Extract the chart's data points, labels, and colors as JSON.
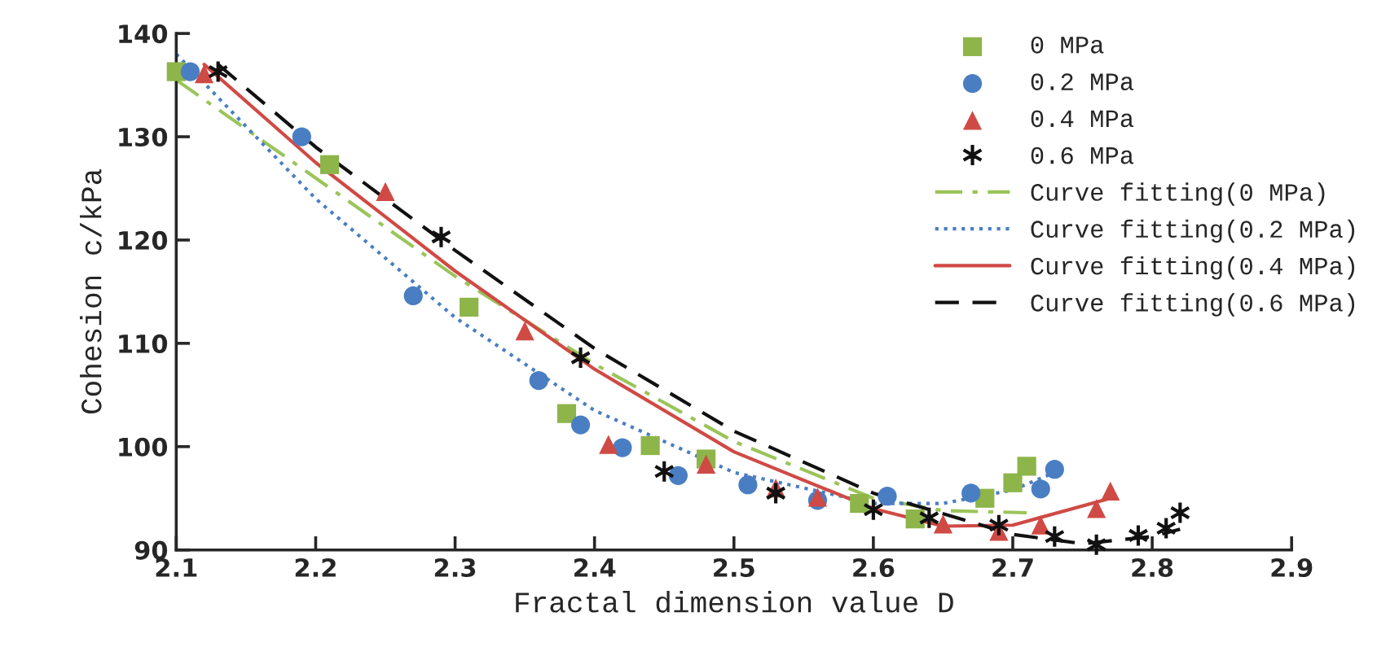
{
  "chart_data": {
    "type": "scatter",
    "xlabel": "Fractal dimension value D",
    "ylabel": "Cohesion c/kPa",
    "xlim": [
      2.1,
      2.9
    ],
    "xticks": [
      {
        "value": 2.1,
        "label": "2.1"
      },
      {
        "value": 2.2,
        "label": "2.2"
      },
      {
        "value": 2.3,
        "label": "2.3"
      },
      {
        "value": 2.4,
        "label": "2.4"
      },
      {
        "value": 2.5,
        "label": "2.5"
      },
      {
        "value": 2.6,
        "label": "2.6"
      },
      {
        "value": 2.7,
        "label": "2.7"
      },
      {
        "value": 2.8,
        "label": "2.8"
      },
      {
        "value": 2.9,
        "label": "2.9"
      }
    ],
    "ylim": [
      90,
      140
    ],
    "yticks": [
      90,
      100,
      110,
      120,
      130,
      140
    ],
    "grid": false,
    "legend": "top right",
    "series": [
      {
        "name": "0 MPa",
        "marker": "square",
        "color": "#8db54a",
        "x": [
          2.1,
          2.21,
          2.31,
          2.38,
          2.44,
          2.48,
          2.59,
          2.63,
          2.68,
          2.7,
          2.71
        ],
        "values": [
          136.3,
          127.3,
          113.5,
          103.2,
          100.1,
          98.8,
          94.5,
          93.0,
          95.0,
          96.5,
          98.1
        ]
      },
      {
        "name": "0.2 MPa",
        "marker": "circle",
        "color": "#4a7ec3",
        "x": [
          2.11,
          2.19,
          2.27,
          2.36,
          2.39,
          2.42,
          2.46,
          2.51,
          2.56,
          2.61,
          2.67,
          2.72,
          2.73
        ],
        "values": [
          136.3,
          130.0,
          114.6,
          106.4,
          102.1,
          99.9,
          97.2,
          96.3,
          94.8,
          95.2,
          95.5,
          95.9,
          97.8
        ]
      },
      {
        "name": "0.4 MPa",
        "marker": "triangle",
        "color": "#d04a45",
        "x": [
          2.12,
          2.25,
          2.35,
          2.41,
          2.48,
          2.53,
          2.56,
          2.65,
          2.69,
          2.72,
          2.76,
          2.77
        ],
        "values": [
          136.1,
          124.7,
          111.2,
          100.2,
          98.3,
          96.0,
          95.1,
          92.5,
          91.8,
          92.4,
          94.0,
          95.7
        ]
      },
      {
        "name": "0.6 MPa",
        "marker": "cross",
        "color": "#111111",
        "x": [
          2.13,
          2.29,
          2.39,
          2.45,
          2.53,
          2.6,
          2.64,
          2.69,
          2.73,
          2.76,
          2.79,
          2.81,
          2.82
        ],
        "values": [
          136.3,
          120.3,
          108.6,
          97.6,
          95.5,
          93.9,
          93.1,
          92.4,
          91.3,
          90.5,
          91.4,
          92.1,
          93.6
        ]
      },
      {
        "name": "Curve fitting(0 MPa)",
        "type": "line",
        "line_style": "dashdot",
        "color": "#9bc45a",
        "x": [
          2.1,
          2.2,
          2.3,
          2.4,
          2.5,
          2.6,
          2.65,
          2.71
        ],
        "values": [
          135.5,
          126.0,
          116.5,
          108.0,
          100.5,
          95.0,
          93.8,
          93.6
        ]
      },
      {
        "name": "Curve fitting(0.2 MPa)",
        "type": "line",
        "line_style": "dotted",
        "color": "#4a7ec3",
        "x": [
          2.1,
          2.2,
          2.3,
          2.4,
          2.5,
          2.6,
          2.65,
          2.7,
          2.73
        ],
        "values": [
          138.0,
          124.0,
          112.5,
          103.5,
          97.5,
          94.5,
          94.5,
          95.8,
          97.5
        ]
      },
      {
        "name": "Curve fitting(0.4 MPa)",
        "type": "line",
        "line_style": "solid",
        "color": "#d04a45",
        "x": [
          2.12,
          2.2,
          2.3,
          2.4,
          2.5,
          2.6,
          2.65,
          2.7,
          2.77
        ],
        "values": [
          137.0,
          127.5,
          117.0,
          107.5,
          99.5,
          94.0,
          92.3,
          92.4,
          95.0
        ]
      },
      {
        "name": "Curve fitting(0.6 MPa)",
        "type": "line",
        "line_style": "dashed",
        "color": "#111111",
        "x": [
          2.13,
          2.2,
          2.3,
          2.4,
          2.5,
          2.6,
          2.7,
          2.75,
          2.8,
          2.82
        ],
        "values": [
          137.0,
          129.0,
          119.0,
          109.5,
          101.5,
          95.5,
          91.5,
          90.6,
          91.3,
          92.0
        ]
      }
    ]
  }
}
